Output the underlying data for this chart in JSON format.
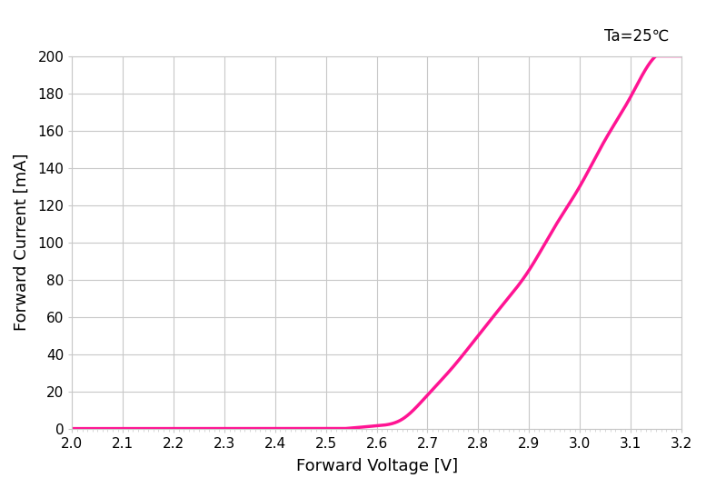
{
  "title_annotation": "Ta=25℃",
  "xlabel": "Forward Voltage [V]",
  "ylabel": "Forward Current [mA]",
  "xlim": [
    2.0,
    3.2
  ],
  "ylim": [
    0,
    200
  ],
  "xticks": [
    2.0,
    2.1,
    2.2,
    2.3,
    2.4,
    2.5,
    2.6,
    2.7,
    2.8,
    2.9,
    3.0,
    3.1,
    3.2
  ],
  "yticks": [
    0,
    20,
    40,
    60,
    80,
    100,
    120,
    140,
    160,
    180,
    200
  ],
  "line_color": "#FF1493",
  "line_width": 2.5,
  "background_color": "#ffffff",
  "grid_color": "#c8c8c8",
  "annotation_fontsize": 12,
  "axis_label_fontsize": 13,
  "tick_fontsize": 11,
  "key_points_V": [
    2.0,
    2.55,
    2.6,
    2.65,
    2.7,
    2.75,
    2.8,
    2.85,
    2.9,
    2.95,
    3.0,
    3.05,
    3.1,
    3.15,
    3.2
  ],
  "key_points_I": [
    0.0,
    0.3,
    1.5,
    5.0,
    18.0,
    33.0,
    50.0,
    67.0,
    85.0,
    108.0,
    130.0,
    155.0,
    178.0,
    200.0,
    200.0
  ]
}
